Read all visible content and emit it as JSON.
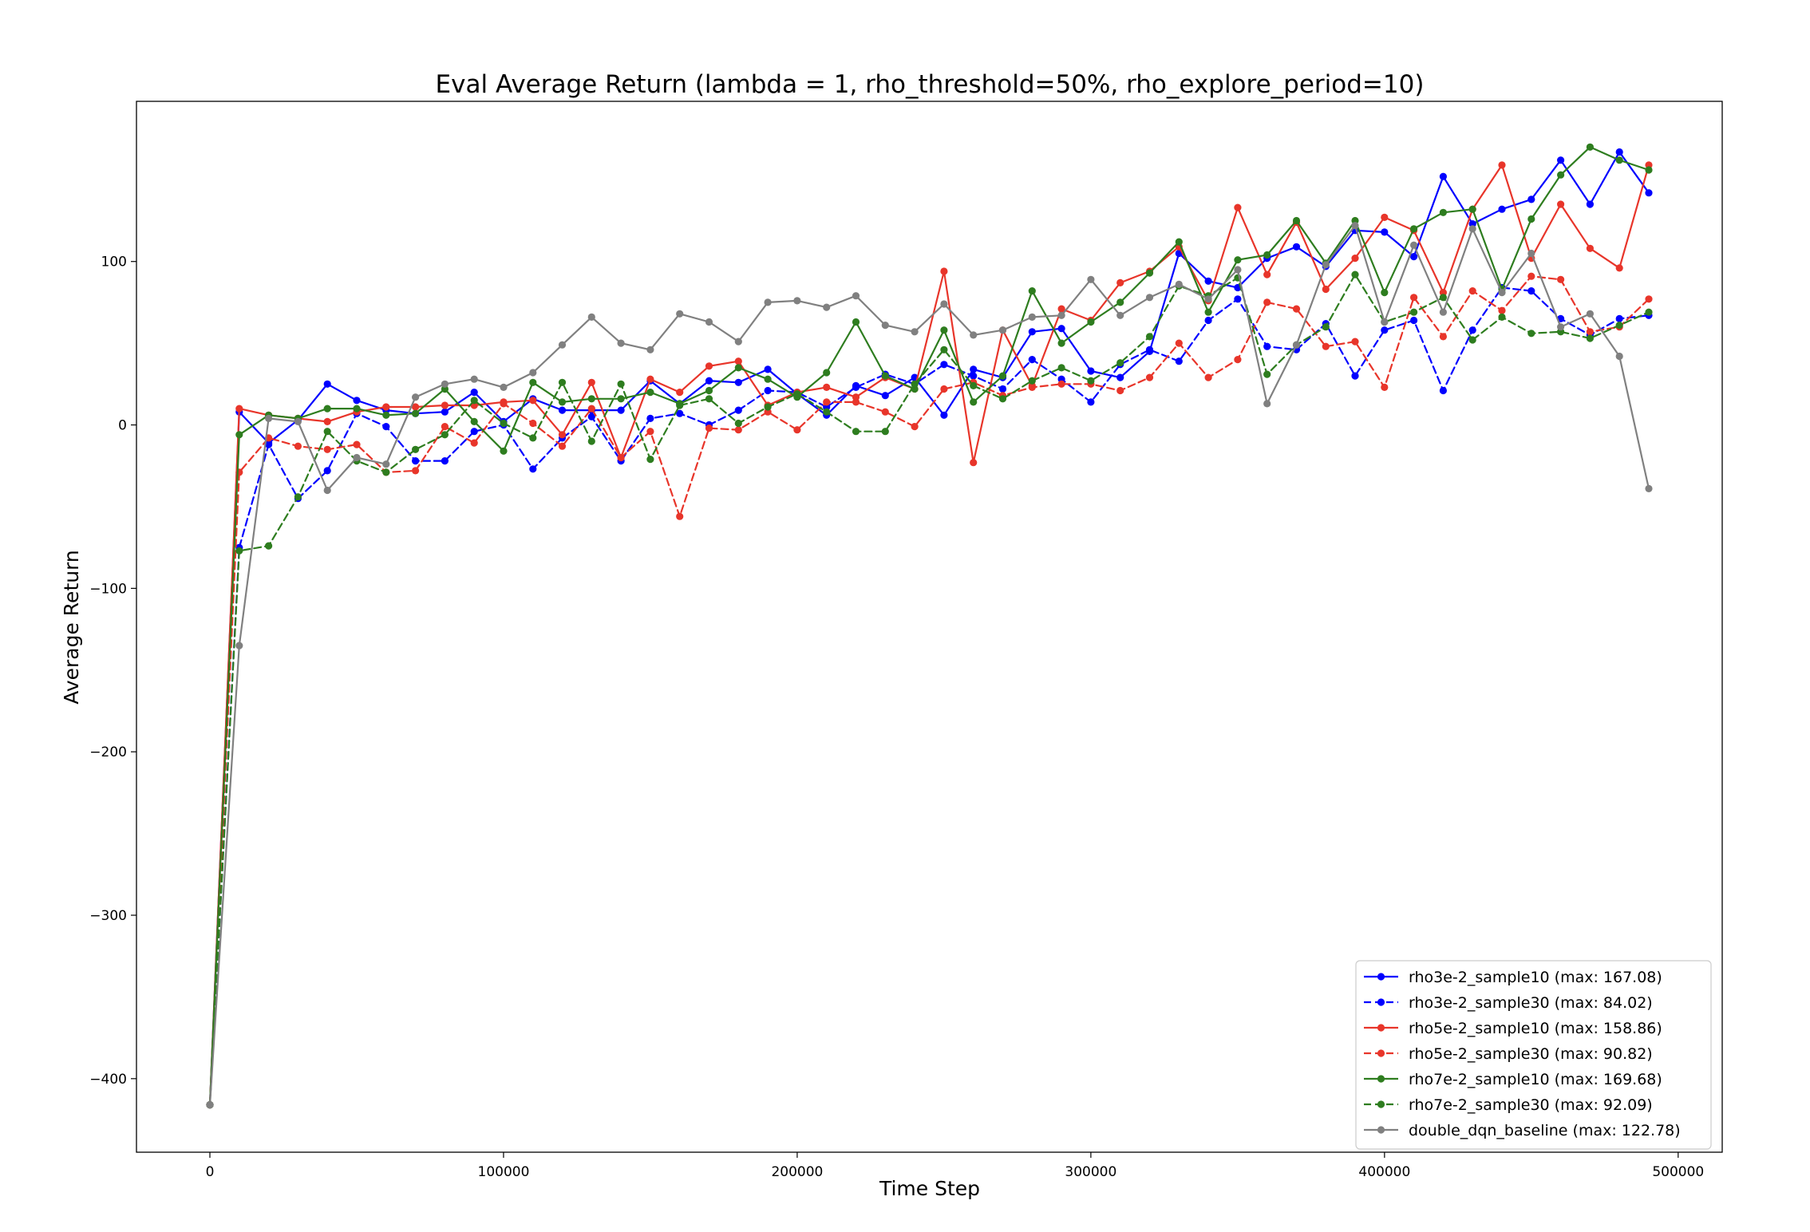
{
  "chart_data": {
    "type": "line",
    "title": "Eval Average Return (lambda = 1, rho_threshold=50%, rho_explore_period=10)",
    "xlabel": "Time Step",
    "ylabel": "Average Return",
    "xlim": [
      -25000,
      515000
    ],
    "ylim": [
      -445,
      198
    ],
    "xticks": [
      0,
      100000,
      200000,
      300000,
      400000,
      500000
    ],
    "xtick_labels": [
      "0",
      "100000",
      "200000",
      "300000",
      "400000",
      "500000"
    ],
    "yticks": [
      100,
      0,
      -100,
      -200,
      -300,
      -400
    ],
    "ytick_labels": [
      "100",
      "0",
      "−100",
      "−200",
      "−300",
      "−400"
    ],
    "grid": false,
    "legend_position": "lower-right",
    "x": [
      0,
      10000,
      20000,
      30000,
      40000,
      50000,
      60000,
      70000,
      80000,
      90000,
      100000,
      110000,
      120000,
      130000,
      140000,
      150000,
      160000,
      170000,
      180000,
      190000,
      200000,
      210000,
      220000,
      230000,
      240000,
      250000,
      260000,
      270000,
      280000,
      290000,
      300000,
      310000,
      320000,
      330000,
      340000,
      350000,
      360000,
      370000,
      380000,
      390000,
      400000,
      410000,
      420000,
      430000,
      440000,
      450000,
      460000,
      470000,
      480000,
      490000
    ],
    "series": [
      {
        "name": "rho3e-2_sample10",
        "legend_label": "rho3e-2_sample10  (max: 167.08)",
        "color": "#0000ff",
        "dash": "solid",
        "values": [
          -416,
          8,
          -11,
          3,
          25,
          15,
          9,
          7,
          8,
          20,
          2,
          16,
          9,
          9,
          9,
          27,
          13,
          27,
          26,
          34,
          19,
          6,
          24,
          18,
          29,
          6,
          34,
          29,
          57,
          59,
          33,
          29,
          45,
          105,
          88,
          84,
          102,
          109,
          97,
          119,
          118,
          103,
          152,
          123,
          132,
          138,
          162,
          135,
          167,
          142
        ]
      },
      {
        "name": "rho3e-2_sample30",
        "legend_label": "rho3e-2_sample30  (max: 84.02)",
        "color": "#0000ff",
        "dash": "dashed",
        "values": [
          -416,
          -75,
          -12,
          -45,
          -28,
          7,
          -1,
          -22,
          -22,
          -4,
          0,
          -27,
          -8,
          5,
          -22,
          4,
          7,
          0,
          9,
          21,
          20,
          11,
          23,
          31,
          25,
          37,
          30,
          22,
          40,
          28,
          14,
          37,
          46,
          39,
          64,
          77,
          48,
          46,
          62,
          30,
          58,
          64,
          21,
          58,
          84,
          82,
          65,
          55,
          65,
          67
        ]
      },
      {
        "name": "rho5e-2_sample10",
        "legend_label": "rho5e-2_sample10  (max: 158.86)",
        "color": "#e8352a",
        "dash": "solid",
        "values": [
          -416,
          10,
          6,
          4,
          2,
          8,
          11,
          11,
          12,
          12,
          14,
          15,
          -6,
          26,
          -20,
          28,
          20,
          36,
          39,
          12,
          20,
          23,
          17,
          29,
          22,
          94,
          -23,
          58,
          24,
          71,
          64,
          87,
          94,
          109,
          76,
          133,
          92,
          124,
          83,
          102,
          127,
          119,
          81,
          132,
          159,
          102,
          135,
          108,
          96,
          159
        ]
      },
      {
        "name": "rho5e-2_sample30",
        "legend_label": "rho5e-2_sample30  (max: 90.82)",
        "color": "#e8352a",
        "dash": "dashed",
        "values": [
          -416,
          -29,
          -8,
          -13,
          -15,
          -12,
          -29,
          -28,
          -1,
          -11,
          13,
          1,
          -13,
          10,
          -20,
          -4,
          -56,
          -2,
          -3,
          8,
          -3,
          14,
          14,
          8,
          -1,
          22,
          26,
          18,
          23,
          25,
          25,
          21,
          29,
          50,
          29,
          40,
          75,
          71,
          48,
          51,
          23,
          78,
          54,
          82,
          70,
          91,
          89,
          57,
          60,
          77
        ]
      },
      {
        "name": "rho7e-2_sample10",
        "legend_label": "rho7e-2_sample10  (max: 169.68)",
        "color": "#2e7d1f",
        "dash": "solid",
        "values": [
          -416,
          -6,
          6,
          4,
          10,
          10,
          6,
          7,
          22,
          2,
          -16,
          26,
          14,
          16,
          16,
          20,
          13,
          21,
          35,
          28,
          17,
          32,
          63,
          30,
          22,
          58,
          14,
          30,
          82,
          50,
          63,
          75,
          93,
          112,
          69,
          101,
          104,
          125,
          99,
          125,
          81,
          120,
          130,
          132,
          83,
          126,
          153,
          170,
          162,
          156
        ]
      },
      {
        "name": "rho7e-2_sample30",
        "legend_label": "rho7e-2_sample30  (max: 92.09)",
        "color": "#2e7d1f",
        "dash": "dashed",
        "values": [
          -416,
          -77,
          -74,
          -44,
          -4,
          -22,
          -29,
          -15,
          -6,
          15,
          1,
          -8,
          26,
          -10,
          25,
          -21,
          12,
          16,
          1,
          11,
          19,
          8,
          -4,
          -4,
          25,
          46,
          24,
          16,
          27,
          35,
          27,
          38,
          54,
          85,
          79,
          90,
          31,
          49,
          60,
          92,
          63,
          69,
          78,
          52,
          66,
          56,
          57,
          53,
          61,
          69
        ]
      },
      {
        "name": "double_dqn_baseline",
        "legend_label": "double_dqn_baseline  (max: 122.78)",
        "color": "#808080",
        "dash": "solid",
        "values": [
          -416,
          -135,
          4,
          2,
          -40,
          -20,
          -24,
          17,
          25,
          28,
          23,
          32,
          49,
          66,
          50,
          46,
          68,
          63,
          51,
          75,
          76,
          72,
          79,
          61,
          57,
          74,
          55,
          58,
          66,
          67,
          89,
          67,
          78,
          86,
          77,
          95,
          13,
          49,
          98,
          122,
          63,
          110,
          69,
          120,
          81,
          105,
          60,
          68,
          42,
          -39
        ]
      }
    ]
  }
}
